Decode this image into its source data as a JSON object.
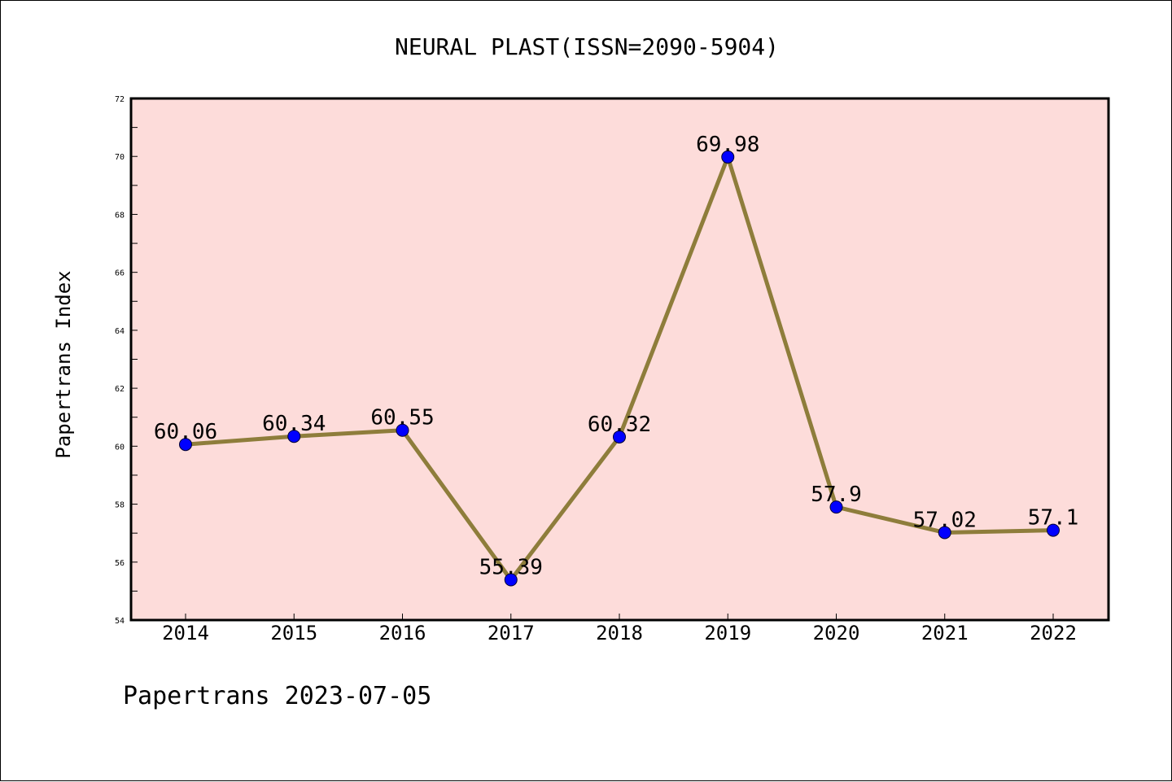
{
  "chart_data": {
    "type": "line",
    "title": "NEURAL PLAST(ISSN=2090-5904)",
    "xlabel": "",
    "ylabel": "Papertrans Index",
    "categories": [
      "2014",
      "2015",
      "2016",
      "2017",
      "2018",
      "2019",
      "2020",
      "2021",
      "2022"
    ],
    "series": [
      {
        "values": [
          60.06,
          60.34,
          60.55,
          55.39,
          60.32,
          69.98,
          57.9,
          57.02,
          57.1
        ],
        "labels": [
          "60.06",
          "60.34",
          "60.55",
          "55.39",
          "60.32",
          "69.98",
          "57.9",
          "57.02",
          "57.1"
        ]
      }
    ],
    "ylim": [
      54,
      72
    ],
    "yticks": [
      "54",
      "56",
      "58",
      "60",
      "62",
      "64",
      "66",
      "68",
      "70",
      "72"
    ],
    "grid": false,
    "legend": "none",
    "colors": {
      "plot_background": "#fddcda",
      "line": "#8e7d3b",
      "marker": "#0000ff"
    }
  },
  "footer": "Papertrans 2023-07-05"
}
